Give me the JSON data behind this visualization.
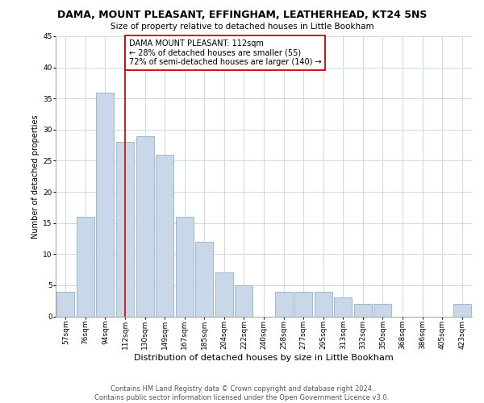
{
  "title": "DAMA, MOUNT PLEASANT, EFFINGHAM, LEATHERHEAD, KT24 5NS",
  "subtitle": "Size of property relative to detached houses in Little Bookham",
  "xlabel": "Distribution of detached houses by size in Little Bookham",
  "ylabel": "Number of detached properties",
  "footer_line1": "Contains HM Land Registry data © Crown copyright and database right 2024.",
  "footer_line2": "Contains public sector information licensed under the Open Government Licence v3.0.",
  "bar_labels": [
    "57sqm",
    "76sqm",
    "94sqm",
    "112sqm",
    "130sqm",
    "149sqm",
    "167sqm",
    "185sqm",
    "204sqm",
    "222sqm",
    "240sqm",
    "258sqm",
    "277sqm",
    "295sqm",
    "313sqm",
    "332sqm",
    "350sqm",
    "368sqm",
    "386sqm",
    "405sqm",
    "423sqm"
  ],
  "bar_values": [
    4,
    16,
    36,
    28,
    29,
    26,
    16,
    12,
    7,
    5,
    0,
    4,
    4,
    4,
    3,
    2,
    2,
    0,
    0,
    0,
    2
  ],
  "bar_color": "#c8d8e8",
  "bar_edge_color": "#a0b8cc",
  "marker_index": 3,
  "marker_color": "#cc0000",
  "ylim": [
    0,
    45
  ],
  "yticks": [
    0,
    5,
    10,
    15,
    20,
    25,
    30,
    35,
    40,
    45
  ],
  "annotation_title": "DAMA MOUNT PLEASANT: 112sqm",
  "annotation_line1": "← 28% of detached houses are smaller (55)",
  "annotation_line2": "72% of semi-detached houses are larger (140) →",
  "annotation_box_color": "#ffffff",
  "annotation_box_edge": "#cc0000",
  "bg_color": "#ffffff",
  "grid_color": "#d0d8e0",
  "title_fontsize": 9,
  "subtitle_fontsize": 7.5,
  "xlabel_fontsize": 8,
  "ylabel_fontsize": 7,
  "tick_fontsize": 6.5,
  "annotation_fontsize": 7,
  "footer_fontsize": 6
}
